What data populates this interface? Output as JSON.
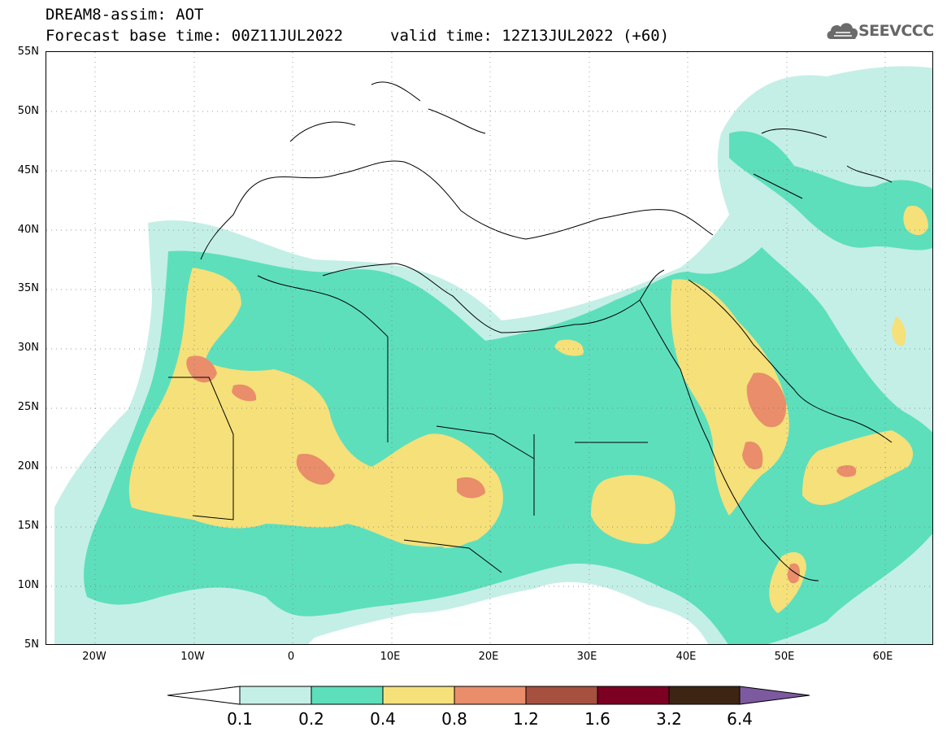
{
  "header": {
    "title": "DREAM8-assim: AOT",
    "forecast_base": "Forecast base time: 00Z11JUL2022",
    "valid_time": "valid time: 12Z13JUL2022 (+60)",
    "logo_text": "SEEVCCC"
  },
  "map": {
    "lat_labels": [
      "55N",
      "50N",
      "45N",
      "40N",
      "35N",
      "30N",
      "25N",
      "20N",
      "15N",
      "10N",
      "5N"
    ],
    "lon_labels": [
      "20W",
      "10W",
      "0",
      "10E",
      "20E",
      "30E",
      "40E",
      "50E",
      "60E"
    ],
    "extent": {
      "lon_min": -25,
      "lon_max": 65,
      "lat_min": 5,
      "lat_max": 55
    },
    "grid": true
  },
  "colorbar": {
    "labels": [
      "0.1",
      "0.2",
      "0.4",
      "0.8",
      "1.2",
      "1.6",
      "3.2",
      "6.4"
    ],
    "colors": [
      "#ffffff",
      "#c4efe6",
      "#5ddfbc",
      "#f5e07a",
      "#e98d6a",
      "#a65040",
      "#7b0022",
      "#3c2512",
      "#7d5a9f"
    ]
  }
}
